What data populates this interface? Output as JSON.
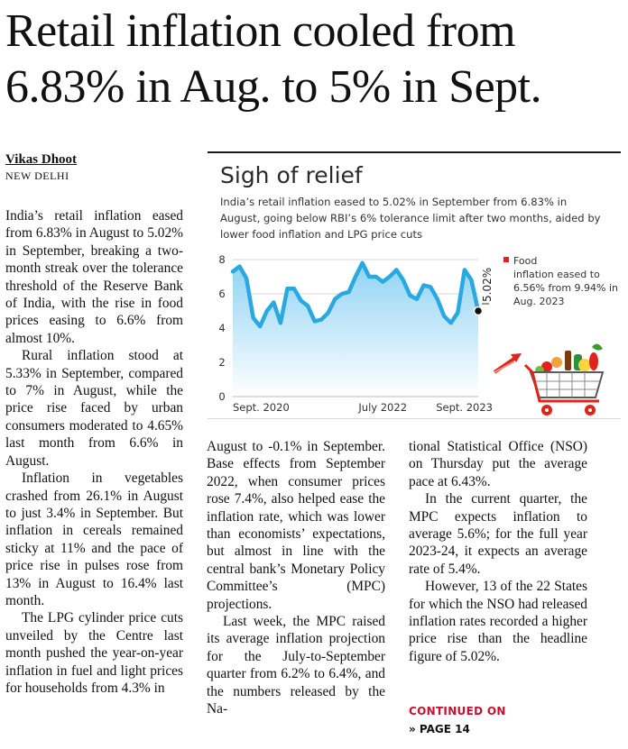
{
  "headline": {
    "line1": "Retail inflation cooled from",
    "line2": "6.83% in Aug. to 5% in Sept."
  },
  "byline": {
    "author": "Vikas Dhoot",
    "location": "NEW DELHI"
  },
  "article": {
    "col1": [
      "India’s retail inflation eased from 6.83% in August to 5.02% in September, breaking a two-month streak over the tolerance threshold of the Reserve Bank of India, with the rise in food prices easing to 6.6% from almost 10%.",
      "Rural inflation stood at 5.33% in September, compared to 7% in August, while the price rise faced by urban consumers moderated to 4.65% last month from 6.6% in August.",
      "Inflation in vegetables crashed from 26.1% in August to just 3.4% in September. But inflation in cereals remained sticky at 11% and the pace of price rise in pulses rose from 13% in August to 16.4% last month.",
      "The LPG cylinder price cuts unveiled by the Centre last month pushed the year-on-year inflation in fuel and light prices for households from 4.3% in"
    ],
    "col2": [
      "August to -0.1% in September. Base effects from September 2022, when consumer prices rose 7.4%, also helped ease the inflation rate, which was lower than economists’ expectations, but almost in line with the central bank’s Monetary Policy Committee’s (MPC) projections.",
      "Last week, the MPC raised its average inflation projection for the July-to-September quarter from 6.2% to 6.4%, and the numbers released by the Na-"
    ],
    "col3": [
      "tional Statistical Office (NSO) on Thursday put the average pace at 6.43%.",
      "In the current quarter, the MPC expects inflation to average 5.6%; for the full year 2023-24, it expects an average rate of 5.4%.",
      "However, 13 of the 22 States for which the NSO had released inflation rates recorded a higher price rise than the headline figure of 5.02%."
    ],
    "continued_label": "CONTINUED ON",
    "continued_page": "» PAGE 14"
  },
  "chart_data": {
    "type": "area",
    "title": "Sigh of relief",
    "subtitle": "India’s retail inflation eased to 5.02% in September from 6.83% in August, going below RBI’s 6% tolerance limit after two months, aided by lower food inflation and LPG price cuts",
    "x": [
      "Sept. 2020",
      "Oct. 2020",
      "Nov. 2020",
      "Dec. 2020",
      "Jan. 2021",
      "Feb. 2021",
      "Mar. 2021",
      "Apr. 2021",
      "May 2021",
      "June 2021",
      "July 2021",
      "Aug. 2021",
      "Sept. 2021",
      "Oct. 2021",
      "Nov. 2021",
      "Dec. 2021",
      "Jan. 2022",
      "Feb. 2022",
      "Mar. 2022",
      "Apr. 2022",
      "May 2022",
      "June 2022",
      "July 2022",
      "Aug. 2022",
      "Sept. 2022",
      "Oct. 2022",
      "Nov. 2022",
      "Dec. 2022",
      "Jan. 2023",
      "Feb. 2023",
      "Mar. 2023",
      "Apr. 2023",
      "May 2023",
      "June 2023",
      "July 2023",
      "Aug. 2023",
      "Sept. 2023"
    ],
    "y": [
      7.3,
      7.6,
      6.9,
      4.6,
      4.1,
      5.0,
      5.5,
      4.3,
      6.3,
      6.3,
      5.6,
      5.3,
      4.4,
      4.5,
      4.9,
      5.7,
      6.0,
      6.1,
      7.0,
      7.8,
      7.0,
      7.0,
      6.7,
      7.0,
      7.4,
      6.8,
      5.9,
      5.7,
      6.5,
      6.4,
      5.7,
      4.7,
      4.3,
      4.9,
      7.4,
      6.8,
      5.0
    ],
    "ylim": [
      0,
      8
    ],
    "yticks": [
      0,
      2,
      4,
      6,
      8
    ],
    "xtick_labels": [
      {
        "index": 0,
        "label": "Sept. 2020"
      },
      {
        "index": 22,
        "label": "July 2022"
      },
      {
        "index": 36,
        "label": "Sept. 2023"
      }
    ],
    "end_label": "5.02%",
    "legend": {
      "label": "Food",
      "text": "inflation eased to 6.56% from 9.94% in Aug. 2023",
      "color": "#e2231a"
    },
    "line_color": "#29a9e0",
    "fill_top_color": "#8fd3f4",
    "fill_bottom_color": "#ffffff"
  }
}
